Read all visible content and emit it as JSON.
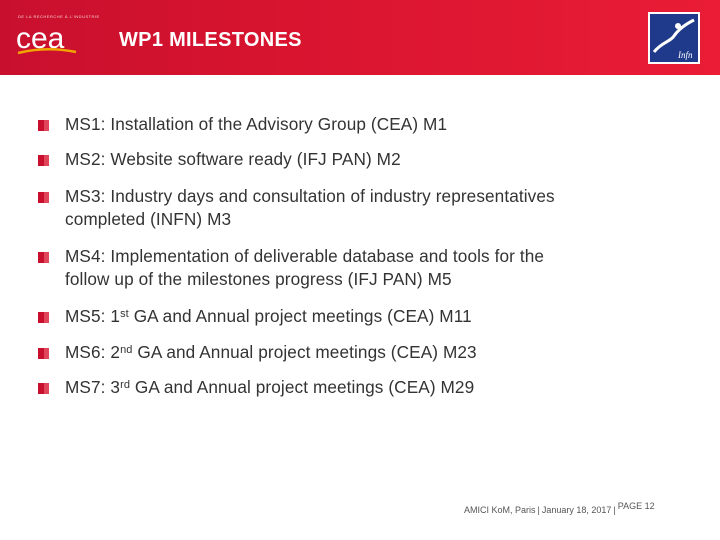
{
  "header": {
    "title": "WP1 MILESTONES",
    "logo_left": {
      "name": "cea",
      "tagline": "DE LA RECHERCHE À L'INDUSTRIE",
      "wordmark": "cea"
    },
    "logo_right": {
      "name": "infn",
      "wordmark": "Infn"
    },
    "color": "#d8142f"
  },
  "accent_color": "#c8102e",
  "milestones": [
    {
      "text": "MS1: Installation of the Advisory Group (CEA) M1"
    },
    {
      "text": "MS2: Website software ready (IFJ PAN) M2"
    },
    {
      "line1": "MS3: Industry days and consultation of industry representatives",
      "line2": "completed (INFN) M3"
    },
    {
      "line1": "MS4: Implementation of deliverable database and tools for the",
      "line2": "follow up of the milestones progress (IFJ PAN) M5"
    },
    {
      "pre": "MS5: 1",
      "sup": "st",
      "post": " GA and Annual project meetings (CEA) M11"
    },
    {
      "pre": "MS6: 2",
      "sup": "nd",
      "post": " GA and Annual project meetings (CEA) M23"
    },
    {
      "pre": "MS7: 3",
      "sup": "rd",
      "post": " GA and Annual project meetings (CEA) M29"
    }
  ],
  "footer": {
    "event": "AMICI KoM, Paris",
    "date": "January 18, 2017",
    "separator": "|",
    "page": "PAGE 12"
  }
}
